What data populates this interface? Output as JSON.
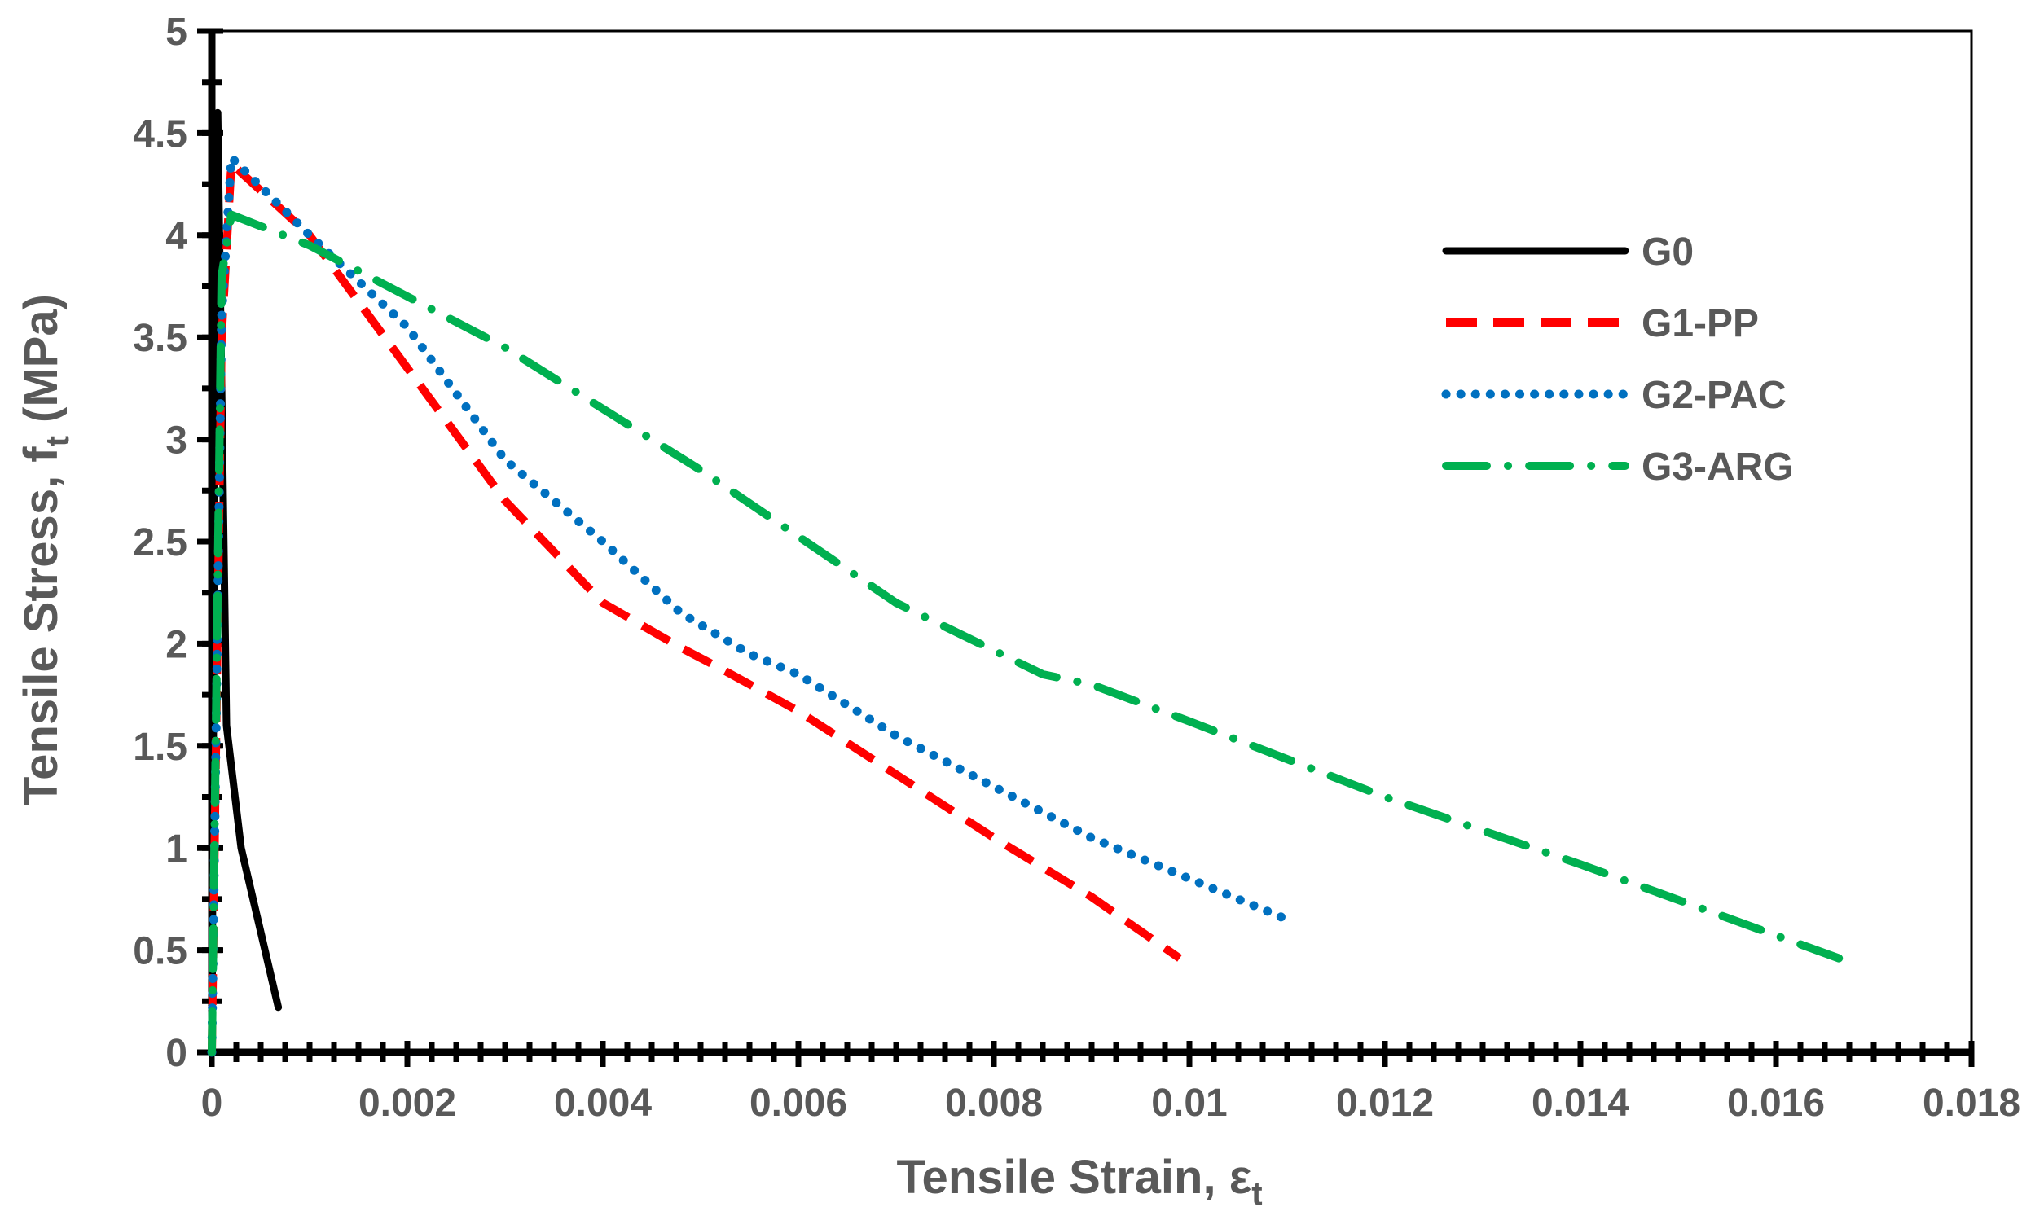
{
  "chart_data": {
    "type": "line",
    "title": "",
    "xlabel": "Tensile Strain, ε",
    "xlabel_sub": "t",
    "ylabel": "Tensile Stress, f",
    "ylabel_sub": "t",
    "ylabel_unit": " (MPa)",
    "xlim": [
      0,
      0.018
    ],
    "ylim": [
      0,
      5
    ],
    "x_ticks": [
      0,
      0.002,
      0.004,
      0.006,
      0.008,
      0.01,
      0.012,
      0.014,
      0.016,
      0.018
    ],
    "x_tick_labels": [
      "0",
      "0.002",
      "0.004",
      "0.006",
      "0.008",
      "0.01",
      "0.012",
      "0.014",
      "0.016",
      "0.018"
    ],
    "y_ticks": [
      0,
      0.5,
      1,
      1.5,
      2,
      2.5,
      3,
      3.5,
      4,
      4.5,
      5
    ],
    "y_tick_labels": [
      "0",
      "0.5",
      "1",
      "1.5",
      "2",
      "2.5",
      "3",
      "3.5",
      "4",
      "4.5",
      "5"
    ],
    "grid": false,
    "legend_position": "top-right",
    "series": [
      {
        "name": "G0",
        "color": "#000000",
        "style": "solid",
        "x": [
          0,
          3e-05,
          6e-05,
          0.00015,
          0.0003,
          0.00068
        ],
        "y": [
          0,
          3.0,
          4.6,
          1.6,
          1.0,
          0.22
        ]
      },
      {
        "name": "G1-PP",
        "color": "#ff0000",
        "style": "dashed",
        "x": [
          0,
          0.0001,
          0.0002,
          0.001,
          0.002,
          0.003,
          0.004,
          0.0048,
          0.0052,
          0.006,
          0.007,
          0.008,
          0.009,
          0.0099
        ],
        "y": [
          0,
          3.5,
          4.35,
          4.0,
          3.35,
          2.7,
          2.2,
          1.98,
          1.88,
          1.67,
          1.36,
          1.05,
          0.76,
          0.46
        ]
      },
      {
        "name": "G2-PAC",
        "color": "#0070c0",
        "style": "dotted",
        "x": [
          0,
          0.0001,
          0.0002,
          0.001,
          0.002,
          0.003,
          0.004,
          0.0048,
          0.0055,
          0.006,
          0.007,
          0.008,
          0.009,
          0.011
        ],
        "y": [
          0,
          3.6,
          4.38,
          4.0,
          3.55,
          2.9,
          2.5,
          2.15,
          1.95,
          1.85,
          1.55,
          1.3,
          1.05,
          0.65
        ]
      },
      {
        "name": "G3-ARG",
        "color": "#00b050",
        "style": "dashdot",
        "x": [
          0,
          0.0001,
          0.0002,
          0.001,
          0.002,
          0.003,
          0.005,
          0.007,
          0.0085,
          0.009,
          0.01,
          0.012,
          0.014,
          0.0167
        ],
        "y": [
          0,
          3.8,
          4.1,
          3.95,
          3.7,
          3.45,
          2.85,
          2.2,
          1.85,
          1.8,
          1.62,
          1.25,
          0.92,
          0.45
        ]
      }
    ]
  }
}
